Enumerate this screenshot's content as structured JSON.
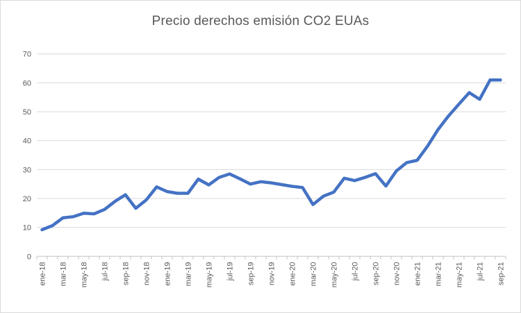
{
  "chart_data": {
    "type": "line",
    "title": "Precio derechos emisión CO2 EUAs",
    "xlabel": "",
    "ylabel": "",
    "ylim": [
      0,
      70
    ],
    "y_ticks": [
      0,
      10,
      20,
      30,
      40,
      50,
      60,
      70
    ],
    "grid": true,
    "legend": false,
    "x": [
      "ene-18",
      "feb-18",
      "mar-18",
      "abr-18",
      "may-18",
      "jun-18",
      "jul-18",
      "ago-18",
      "sep-18",
      "oct-18",
      "nov-18",
      "dic-18",
      "ene-19",
      "feb-19",
      "mar-19",
      "abr-19",
      "may-19",
      "jun-19",
      "jul-19",
      "ago-19",
      "sep-19",
      "oct-19",
      "nov-19",
      "dic-19",
      "ene-20",
      "feb-20",
      "mar-20",
      "abr-20",
      "may-20",
      "jun-20",
      "jul-20",
      "ago-20",
      "sep-20",
      "oct-20",
      "nov-20",
      "dic-20",
      "ene-21",
      "feb-21",
      "mar-21",
      "abr-21",
      "may-21",
      "jun-21",
      "jul-21",
      "ago-21",
      "sep-21"
    ],
    "values": [
      9.2,
      10.6,
      13.3,
      13.7,
      14.9,
      14.7,
      16.2,
      19.0,
      21.3,
      16.6,
      19.5,
      24.0,
      22.4,
      21.8,
      21.8,
      26.7,
      24.7,
      27.3,
      28.5,
      26.8,
      25.0,
      25.8,
      25.4,
      24.8,
      24.2,
      23.8,
      17.9,
      20.8,
      22.2,
      27.0,
      26.2,
      27.3,
      28.6,
      24.3,
      29.5,
      32.4,
      33.2,
      38.1,
      43.8,
      48.5,
      52.6,
      56.6,
      54.3,
      61.0,
      61.0
    ],
    "visible_x_tick_labels": [
      "ene-18",
      "mar-18",
      "may-18",
      "jul-18",
      "sep-18",
      "nov-18",
      "ene-19",
      "mar-19",
      "may-19",
      "jul-19",
      "sep-19",
      "nov-19",
      "ene-20",
      "mar-20",
      "may-20",
      "jul-20",
      "sep-20",
      "nov-20",
      "ene-21",
      "mar-21",
      "may-21",
      "jul-21",
      "sep-21"
    ],
    "x_label_interval": 2,
    "colors": {
      "line": "#4472C4",
      "text": "#595959",
      "gridline": "#D9D9D9",
      "axis": "#C3C3C3",
      "background": "#FFFFFF",
      "border": "#D9D9D9"
    }
  }
}
